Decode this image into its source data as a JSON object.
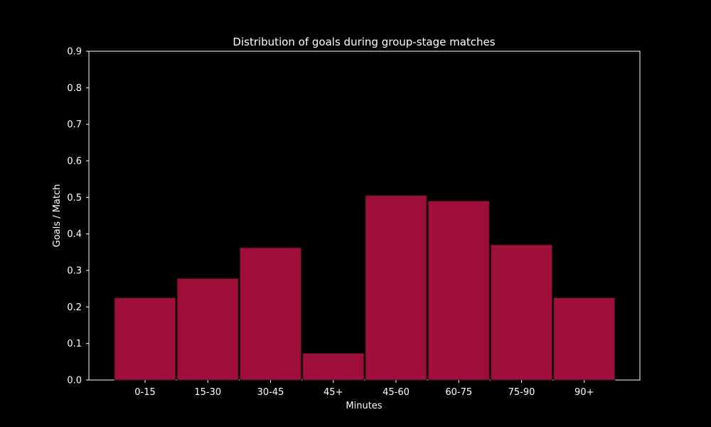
{
  "chart_data": {
    "type": "bar",
    "title": "Distribution of goals during group-stage matches",
    "xlabel": "Minutes",
    "ylabel": "Goals / Match",
    "categories": [
      "0-15",
      "15-30",
      "30-45",
      "45+",
      "45-60",
      "60-75",
      "75-90",
      "90+"
    ],
    "values": [
      0.225,
      0.278,
      0.362,
      0.073,
      0.505,
      0.49,
      0.37,
      0.225
    ],
    "ylim": [
      0,
      0.9
    ],
    "yticks": [
      "0.0",
      "0.1",
      "0.2",
      "0.3",
      "0.4",
      "0.5",
      "0.6",
      "0.7",
      "0.8",
      "0.9"
    ],
    "grid": false,
    "legend": "none",
    "colors": {
      "background": "#000000",
      "bar_fill": "#9e0f39",
      "bar_edge": "#3a0a18",
      "axis": "#ffffff",
      "text": "#ffffff"
    }
  }
}
